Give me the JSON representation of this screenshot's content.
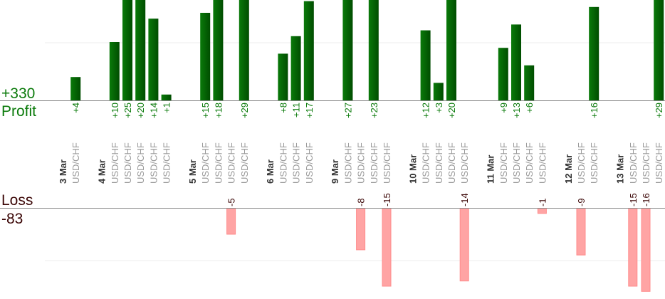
{
  "chart_data": {
    "type": "bar",
    "profit_label": "Profit",
    "loss_label": "Loss",
    "profit_total": "+330",
    "loss_total": "-83",
    "colors": {
      "profit": "#006400",
      "loss": "#ffa4a4",
      "loss_border": "#ff8c8c",
      "profit_text": "#0a7a0a",
      "loss_text": "#3a0505"
    },
    "days": [
      {
        "date": "3 Mar",
        "trades": [
          {
            "pair": "USD/CHF",
            "value": 4,
            "label": "+4"
          }
        ]
      },
      {
        "date": "4 Mar",
        "trades": [
          {
            "pair": "USD/CHF",
            "value": 10,
            "label": "+10"
          },
          {
            "pair": "USD/CHF",
            "value": 25,
            "label": "+25"
          },
          {
            "pair": "USD/CHF",
            "value": 20,
            "label": "+20"
          },
          {
            "pair": "USD/CHF",
            "value": 14,
            "label": "+14"
          },
          {
            "pair": "USD/CHF",
            "value": 1,
            "label": "+1"
          }
        ]
      },
      {
        "date": "5 Mar",
        "trades": [
          {
            "pair": "USD/CHF",
            "value": 15,
            "label": "+15"
          },
          {
            "pair": "USD/CHF",
            "value": 18,
            "label": "+18"
          },
          {
            "pair": "USD/CHF",
            "value": -5,
            "label": "-5"
          },
          {
            "pair": "USD/CHF",
            "value": 29,
            "label": "+29"
          }
        ]
      },
      {
        "date": "6 Mar",
        "trades": [
          {
            "pair": "USD/CHF",
            "value": 8,
            "label": "+8"
          },
          {
            "pair": "USD/CHF",
            "value": 11,
            "label": "+11"
          },
          {
            "pair": "USD/CHF",
            "value": 17,
            "label": "+17"
          }
        ]
      },
      {
        "date": "9 Mar",
        "trades": [
          {
            "pair": "USD/CHF",
            "value": 27,
            "label": "+27"
          },
          {
            "pair": "USD/CHF",
            "value": -8,
            "label": "-8"
          },
          {
            "pair": "USD/CHF",
            "value": 23,
            "label": "+23"
          },
          {
            "pair": "USD/CHF",
            "value": -15,
            "label": "-15"
          }
        ]
      },
      {
        "date": "10 Mar",
        "trades": [
          {
            "pair": "USD/CHF",
            "value": 12,
            "label": "+12"
          },
          {
            "pair": "USD/CHF",
            "value": 3,
            "label": "+3"
          },
          {
            "pair": "USD/CHF",
            "value": 20,
            "label": "+20"
          },
          {
            "pair": "USD/CHF",
            "value": -14,
            "label": "-14"
          }
        ]
      },
      {
        "date": "11 Mar",
        "trades": [
          {
            "pair": "USD/CHF",
            "value": 9,
            "label": "+9"
          },
          {
            "pair": "USD/CHF",
            "value": 13,
            "label": "+13"
          },
          {
            "pair": "USD/CHF",
            "value": 6,
            "label": "+6"
          },
          {
            "pair": "USD/CHF",
            "value": -1,
            "label": "-1"
          }
        ]
      },
      {
        "date": "12 Mar",
        "trades": [
          {
            "pair": "USD/CHF",
            "value": -9,
            "label": "-9"
          },
          {
            "pair": "USD/CHF",
            "value": 16,
            "label": "+16"
          }
        ]
      },
      {
        "date": "13 Mar",
        "trades": [
          {
            "pair": "USD/CHF",
            "value": -15,
            "label": "-15"
          },
          {
            "pair": "USD/CHF",
            "value": -16,
            "label": "-16"
          },
          {
            "pair": "USD/CHF",
            "value": 29,
            "label": "+29"
          }
        ]
      }
    ]
  }
}
